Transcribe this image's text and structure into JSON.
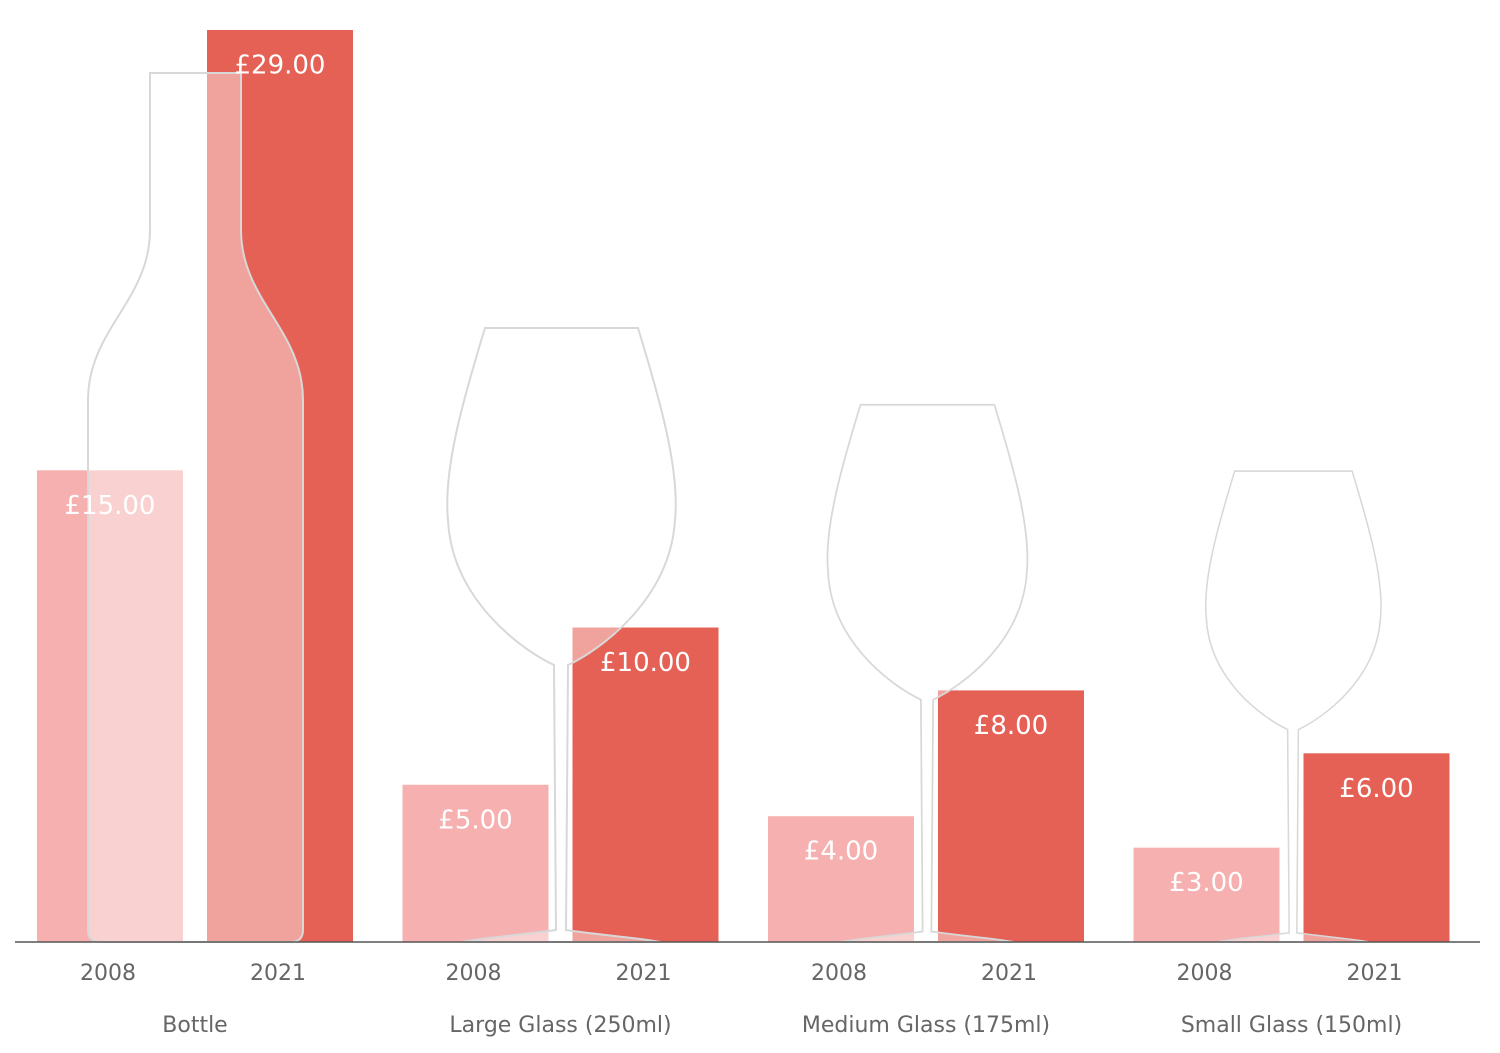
{
  "chart_data": {
    "type": "bar",
    "categories": [
      "Bottle",
      "Large Glass (250ml)",
      "Medium Glass (175ml)",
      "Small Glass (150ml)"
    ],
    "series": [
      {
        "name": "2008",
        "color": "#f4a2a2",
        "values": [
          15,
          5,
          4,
          3
        ],
        "value_labels": [
          "£15.00",
          "£5.00",
          "£4.00",
          "£3.00"
        ]
      },
      {
        "name": "2021",
        "color": "#e4584c",
        "values": [
          29,
          10,
          8,
          6
        ],
        "value_labels": [
          "£29.00",
          "£10.00",
          "£8.00",
          "£6.00"
        ]
      }
    ],
    "ylim": [
      0,
      29
    ]
  }
}
